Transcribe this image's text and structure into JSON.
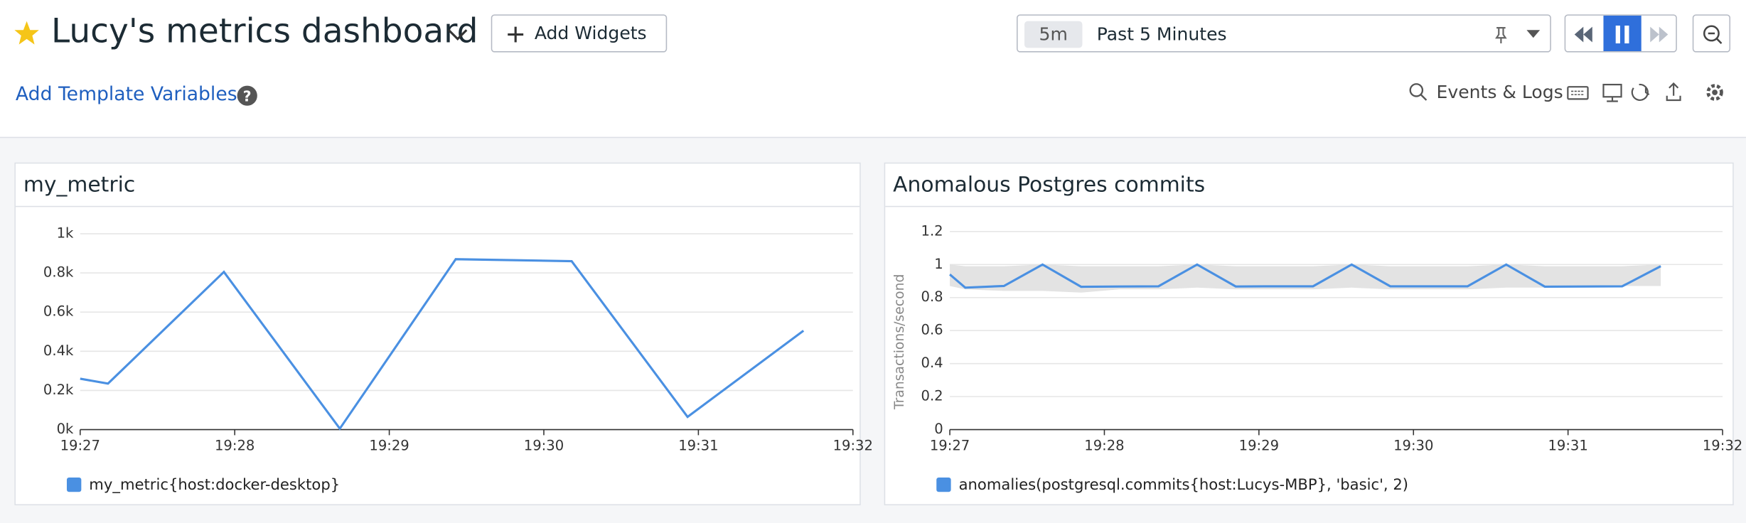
{
  "header": {
    "title": "Lucy's metrics dashboard",
    "add_widgets": "Add Widgets",
    "time_shortcut": "5m",
    "time_range": "Past 5 Minutes"
  },
  "toolbar": {
    "template_variables": "Add Template Variables",
    "events_logs": "Events & Logs"
  },
  "widgets": [
    {
      "title": "my_metric",
      "chart": {
        "type": "line",
        "grid": true,
        "xlim": [
          1167,
          1172
        ],
        "xticks": [
          {
            "value": 1167,
            "label": "19:27"
          },
          {
            "value": 1168,
            "label": "19:28"
          },
          {
            "value": 1169,
            "label": "19:29"
          },
          {
            "value": 1170,
            "label": "19:30"
          },
          {
            "value": 1171,
            "label": "19:31"
          },
          {
            "value": 1172,
            "label": "19:32"
          }
        ],
        "ylim": [
          0,
          1000
        ],
        "yticks": [
          {
            "value": 0,
            "label": "0k"
          },
          {
            "value": 200,
            "label": "0.2k"
          },
          {
            "value": 400,
            "label": "0.4k"
          },
          {
            "value": 600,
            "label": "0.6k"
          },
          {
            "value": 800,
            "label": "0.8k"
          },
          {
            "value": 1000,
            "label": "1k"
          }
        ],
        "series": [
          {
            "name": "my_metric{host:docker-desktop}",
            "color": "#4a90e2",
            "x": [
              1167,
              1167.18,
              1167.93,
              1168.68,
              1169.43,
              1170.18,
              1170.93,
              1171.68
            ],
            "values": [
              260,
              235,
              805,
              5,
              870,
              860,
              65,
              505
            ]
          }
        ]
      }
    },
    {
      "title": "Anomalous Postgres commits",
      "chart": {
        "type": "line",
        "grid": true,
        "y_label": "Transactions/second",
        "xlim": [
          1167,
          1172
        ],
        "xticks": [
          {
            "value": 1167,
            "label": "19:27"
          },
          {
            "value": 1168,
            "label": "19:28"
          },
          {
            "value": 1169,
            "label": "19:29"
          },
          {
            "value": 1170,
            "label": "19:30"
          },
          {
            "value": 1171,
            "label": "19:31"
          },
          {
            "value": 1172,
            "label": "19:32"
          }
        ],
        "ylim": [
          0,
          1.2
        ],
        "yticks": [
          0,
          0.2,
          0.4,
          0.6,
          0.8,
          1,
          1.2
        ],
        "band": {
          "color": "#e3e3e3",
          "upper": [
            1.0,
            0.99,
            0.99,
            1.0,
            0.99,
            0.99,
            0.99,
            1.0,
            0.99,
            0.99,
            0.99,
            1.0,
            0.99,
            0.99,
            0.99,
            1.0,
            0.99,
            0.99,
            0.99,
            1.0
          ],
          "lower": [
            0.87,
            0.85,
            0.84,
            0.84,
            0.83,
            0.85,
            0.85,
            0.86,
            0.85,
            0.85,
            0.85,
            0.86,
            0.85,
            0.85,
            0.85,
            0.86,
            0.86,
            0.87,
            0.87,
            0.87
          ]
        },
        "series": [
          {
            "name": "anomalies(postgresql.commits{host:Lucys-MBP}, 'basic', 2)",
            "color": "#4a90e2",
            "x": [
              1167,
              1167.1,
              1167.35,
              1167.6,
              1167.85,
              1168.1,
              1168.35,
              1168.6,
              1168.85,
              1169.1,
              1169.35,
              1169.6,
              1169.85,
              1170.1,
              1170.35,
              1170.6,
              1170.85,
              1171.1,
              1171.35,
              1171.6
            ],
            "values": [
              0.94,
              0.86,
              0.87,
              1.0,
              0.865,
              0.867,
              0.868,
              1.0,
              0.867,
              0.868,
              0.868,
              1.0,
              0.868,
              0.868,
              0.868,
              1.0,
              0.866,
              0.867,
              0.868,
              0.99
            ]
          }
        ]
      }
    }
  ]
}
